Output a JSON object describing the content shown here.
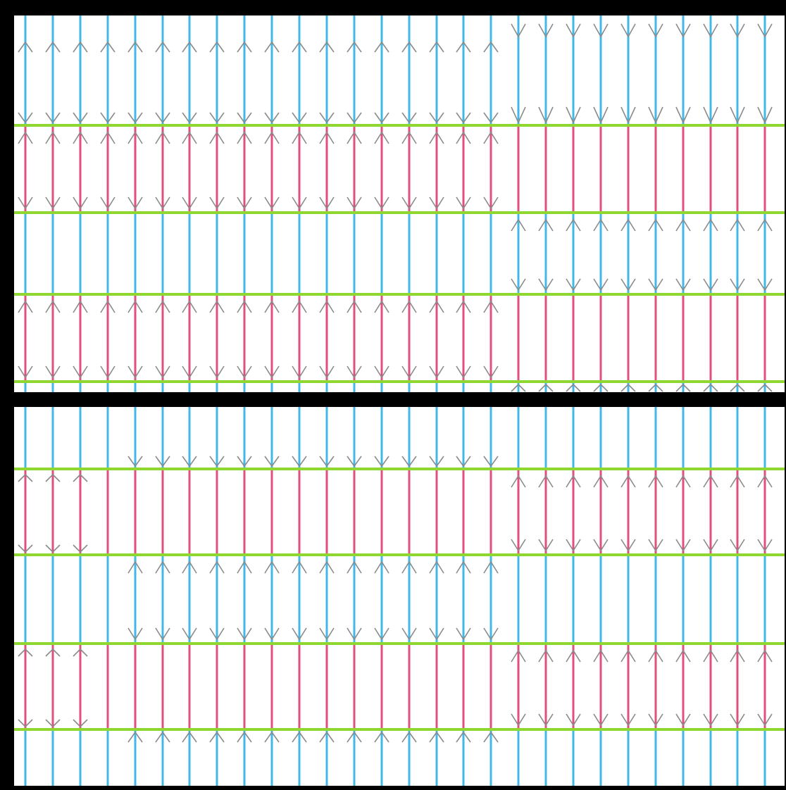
{
  "colors": {
    "frame": "#000000",
    "background": "#ffffff",
    "band_line": "#8fd630",
    "stripe_blue": "#41b8e8",
    "stripe_pink": "#e0507c",
    "arrow_gray": "#8a8a8a"
  },
  "panels": [
    {
      "name": "top-panel",
      "columns": 28,
      "band_count": 4,
      "band_colors": [
        "blue",
        "pink",
        "blue",
        "pink"
      ],
      "arrow_patterns": [
        {
          "band": 0,
          "type": "fan-out",
          "sections": [
            [
              0,
              17,
              "top"
            ],
            [
              18,
              27,
              "top-and-bottom"
            ]
          ]
        },
        {
          "band": 1,
          "type": "fan-in",
          "sections": [
            [
              0,
              17,
              "middle"
            ],
            [
              18,
              27,
              "none"
            ]
          ]
        },
        {
          "band": 2,
          "type": "fan-out",
          "sections": [
            [
              0,
              17,
              "none"
            ],
            [
              18,
              27,
              "middle"
            ]
          ]
        },
        {
          "band": 3,
          "type": "fan-in",
          "sections": [
            [
              0,
              17,
              "middle"
            ],
            [
              18,
              27,
              "none"
            ]
          ]
        }
      ]
    },
    {
      "name": "bottom-panel",
      "columns": 28,
      "band_count": 5,
      "band_colors": [
        "blue",
        "pink",
        "blue",
        "pink",
        "blue"
      ],
      "arrow_patterns": [
        {
          "band": 0,
          "type": "fan-in",
          "sections": [
            [
              4,
              17,
              "bottom"
            ],
            [
              18,
              27,
              "none"
            ]
          ]
        },
        {
          "band": 1,
          "type": "fan-in",
          "sections": [
            [
              0,
              17,
              "none"
            ],
            [
              18,
              27,
              "middle"
            ]
          ]
        },
        {
          "band": 2,
          "type": "fan-out",
          "sections": [
            [
              4,
              17,
              "middle"
            ],
            [
              18,
              27,
              "none"
            ]
          ]
        },
        {
          "band": 3,
          "type": "fan-in",
          "sections": [
            [
              0,
              17,
              "none"
            ],
            [
              18,
              27,
              "middle"
            ]
          ]
        },
        {
          "band": 4,
          "type": "fan-in",
          "sections": [
            [
              4,
              17,
              "top"
            ],
            [
              18,
              27,
              "none"
            ]
          ]
        }
      ]
    }
  ]
}
